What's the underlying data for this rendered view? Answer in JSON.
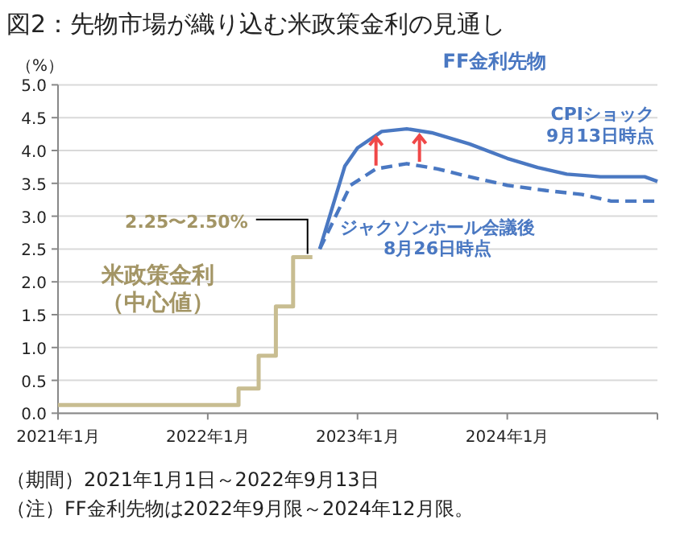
{
  "chart_data": {
    "type": "line",
    "title": "図2：先物市場が織り込む米政策金利の見通し",
    "ylabel": "（%）",
    "xlim": [
      "2021-01-01",
      "2025-01-01"
    ],
    "xticks": [
      {
        "value": "2021-01-01",
        "label": "2021年1月"
      },
      {
        "value": "2022-01-01",
        "label": "2022年1月"
      },
      {
        "value": "2023-01-01",
        "label": "2023年1月"
      },
      {
        "value": "2024-01-01",
        "label": "2024年1月"
      },
      {
        "value": "2025-01-01",
        "label": null
      }
    ],
    "ylim": [
      0,
      5
    ],
    "yticks": [
      {
        "value": 0,
        "label": "0.0"
      },
      {
        "value": 0.5,
        "label": "0.5"
      },
      {
        "value": 1,
        "label": "1.0"
      },
      {
        "value": 1.5,
        "label": "1.5"
      },
      {
        "value": 2,
        "label": "2.0"
      },
      {
        "value": 2.5,
        "label": "2.5"
      },
      {
        "value": 3,
        "label": "3.0"
      },
      {
        "value": 3.5,
        "label": "3.5"
      },
      {
        "value": 4,
        "label": "4.0"
      },
      {
        "value": 4.5,
        "label": "4.5"
      },
      {
        "value": 5,
        "label": "5.0"
      }
    ],
    "grid": "y",
    "legend": false,
    "series": [
      {
        "name": "米政策金利（中心値）",
        "type": "step",
        "color": "#c8bd91",
        "x": [
          "2021-01-01",
          "2022-03-17",
          "2022-05-05",
          "2022-06-16",
          "2022-07-28",
          "2022-09-13"
        ],
        "values": [
          0.125,
          0.375,
          0.875,
          1.625,
          2.375,
          2.375
        ]
      },
      {
        "name": "CPIショック\n9月13日時点",
        "line_style": "solid",
        "color": "#4a78c2",
        "x": [
          "2022-10-01",
          "2022-12-01",
          "2023-01-01",
          "2023-03-01",
          "2023-05-01",
          "2023-07-01",
          "2023-10-01",
          "2024-01-01",
          "2024-03-15",
          "2024-05-25",
          "2024-08-15",
          "2024-12-01",
          "2025-01-01"
        ],
        "values": [
          2.5,
          3.76,
          4.04,
          4.29,
          4.33,
          4.27,
          4.1,
          3.88,
          3.74,
          3.64,
          3.6,
          3.6,
          3.53
        ]
      },
      {
        "name": "ジャクソンホール会議後\n8月26日時点",
        "line_style": "dashed",
        "color": "#4a78c2",
        "x": [
          "2022-10-01",
          "2022-12-15",
          "2023-02-15",
          "2023-05-01",
          "2023-07-15",
          "2023-10-01",
          "2024-01-01",
          "2024-04-05",
          "2024-07-01",
          "2024-09-10",
          "2025-01-01"
        ],
        "values": [
          2.5,
          3.47,
          3.72,
          3.8,
          3.72,
          3.6,
          3.47,
          3.39,
          3.33,
          3.23,
          3.23
        ]
      }
    ],
    "annotations": [
      "FF金利先物",
      {
        "text": "2.25〜2.50%",
        "x": "2022-09-13",
        "y": 2.375
      },
      "（期間）2021年1月1日～2022年9月13日",
      "（注）FF金利先物は2022年9月限～2024年12月限。"
    ]
  }
}
